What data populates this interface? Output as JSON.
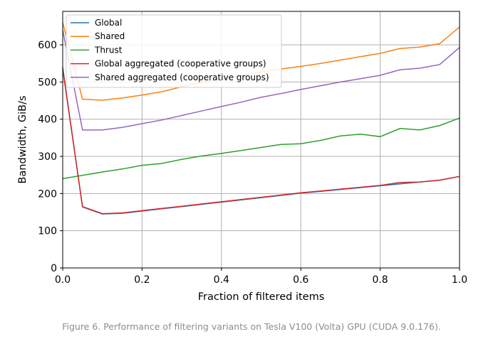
{
  "caption": "Figure 6. Performance of filtering variants on Tesla V100 (Volta) GPU (CUDA 9.0.176).",
  "chart_data": {
    "type": "line",
    "title": "",
    "xlabel": "Fraction of filtered items",
    "ylabel": "Bandwidth, GiB/s",
    "xlim": [
      0.0,
      1.0
    ],
    "ylim": [
      0,
      690
    ],
    "xticks": [
      0.0,
      0.2,
      0.4,
      0.6,
      0.8,
      1.0
    ],
    "xtick_labels": [
      "0.0",
      "0.2",
      "0.4",
      "0.6",
      "0.8",
      "1.0"
    ],
    "yticks": [
      0,
      100,
      200,
      300,
      400,
      500,
      600
    ],
    "ytick_labels": [
      "0",
      "100",
      "200",
      "300",
      "400",
      "500",
      "600"
    ],
    "grid": true,
    "legend_position": "top-left",
    "x": [
      0.0,
      0.05,
      0.1,
      0.15,
      0.2,
      0.25,
      0.3,
      0.35,
      0.4,
      0.45,
      0.5,
      0.55,
      0.6,
      0.65,
      0.7,
      0.75,
      0.8,
      0.85,
      0.9,
      0.95,
      1.0
    ],
    "series": [
      {
        "name": "Global",
        "color": "#1f77b4",
        "values": [
          540,
          164,
          145,
          147,
          153,
          159,
          165,
          171,
          177,
          183,
          189,
          195,
          201,
          206,
          211,
          216,
          221,
          226,
          231,
          236,
          246
        ]
      },
      {
        "name": "Shared",
        "color": "#ff7f0e",
        "values": [
          660,
          454,
          451,
          457,
          465,
          474,
          487,
          499,
          508,
          518,
          527,
          535,
          542,
          550,
          559,
          568,
          577,
          590,
          594,
          603,
          648
        ]
      },
      {
        "name": "Thrust",
        "color": "#2ca02c",
        "values": [
          240,
          249,
          258,
          266,
          276,
          281,
          292,
          301,
          308,
          316,
          324,
          332,
          334,
          343,
          355,
          360,
          353,
          375,
          371,
          383,
          403
        ]
      },
      {
        "name": "Global aggregated (cooperative groups)",
        "color": "#d62728",
        "values": [
          535,
          165,
          146,
          148,
          154,
          160,
          166,
          172,
          178,
          184,
          190,
          196,
          202,
          207,
          212,
          217,
          222,
          230,
          231,
          236,
          246
        ]
      },
      {
        "name": "Shared aggregated (cooperative groups)",
        "color": "#9467bd",
        "values": [
          640,
          371,
          371,
          378,
          388,
          398,
          410,
          422,
          434,
          446,
          459,
          469,
          480,
          490,
          500,
          509,
          518,
          533,
          537,
          547,
          593
        ]
      }
    ]
  }
}
